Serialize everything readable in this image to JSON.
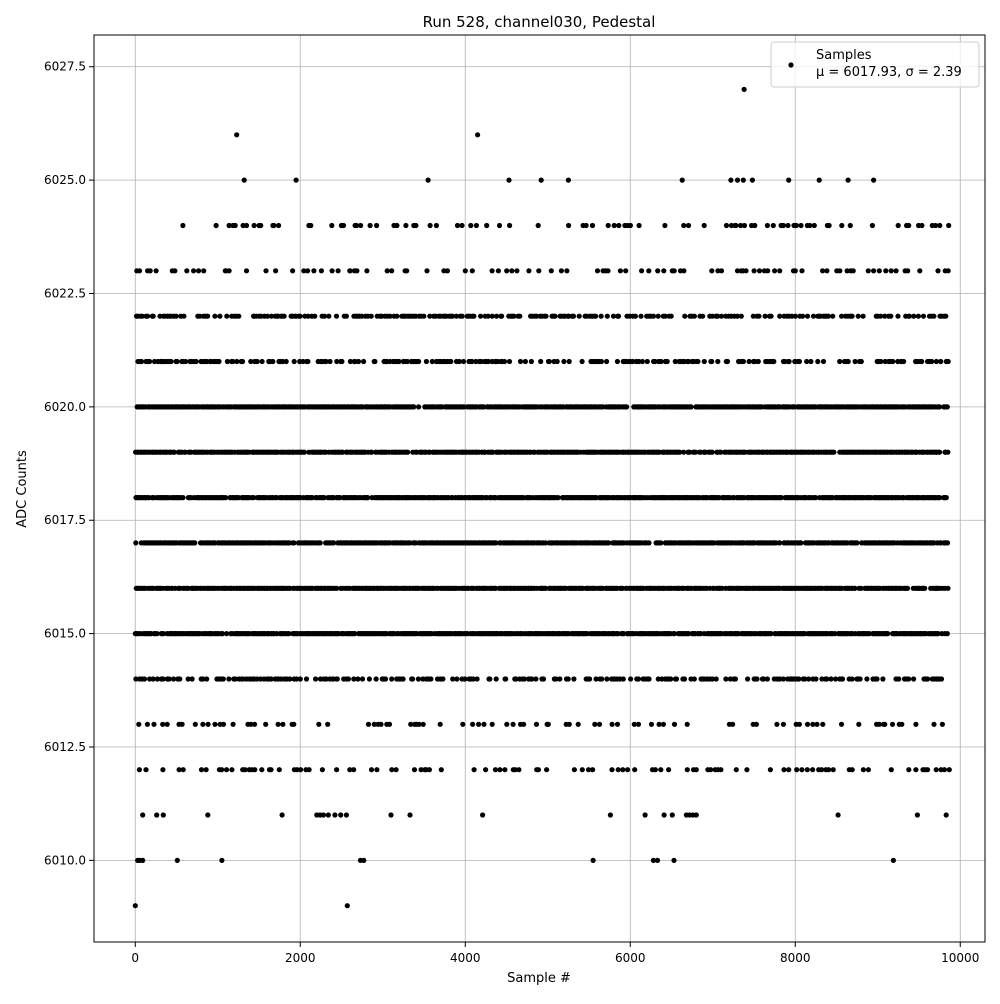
{
  "chart_data": {
    "type": "scatter",
    "title": "Run 528, channel030, Pedestal",
    "xlabel": "Sample #",
    "ylabel": "ADC Counts",
    "xlim": [
      -500,
      10300
    ],
    "ylim": [
      6008.2,
      6028.2
    ],
    "xticks": [
      0,
      2000,
      4000,
      6000,
      8000,
      10000
    ],
    "xtick_labels": [
      "0",
      "2000",
      "4000",
      "6000",
      "8000",
      "10000"
    ],
    "yticks": [
      6010.0,
      6012.5,
      6015.0,
      6017.5,
      6020.0,
      6022.5,
      6025.0,
      6027.5
    ],
    "ytick_labels": [
      "6010.0",
      "6012.5",
      "6015.0",
      "6017.5",
      "6020.0",
      "6022.5",
      "6025.0",
      "6027.5"
    ],
    "grid": true,
    "legend": {
      "placement": "top-right",
      "series_label": "Samples",
      "stats_label": "μ = 6017.93, σ = 2.39"
    },
    "marker_color": "#000000",
    "series": [
      {
        "name": "Samples",
        "n_samples": 9850,
        "dense_levels": [
          6015,
          6016,
          6017,
          6018,
          6019,
          6020
        ],
        "medium_levels": [
          6014,
          6021,
          6022
        ],
        "sparse_levels": [
          6012,
          6013,
          6023,
          6024
        ],
        "rare_points": [
          {
            "x": 0,
            "y": 6009
          },
          {
            "x": 2570,
            "y": 6009
          },
          {
            "x": 30,
            "y": 6010
          },
          {
            "x": 55,
            "y": 6010
          },
          {
            "x": 90,
            "y": 6010
          },
          {
            "x": 510,
            "y": 6010
          },
          {
            "x": 1050,
            "y": 6010
          },
          {
            "x": 2730,
            "y": 6010
          },
          {
            "x": 2770,
            "y": 6010
          },
          {
            "x": 5550,
            "y": 6010
          },
          {
            "x": 6280,
            "y": 6010
          },
          {
            "x": 6330,
            "y": 6010
          },
          {
            "x": 6530,
            "y": 6010
          },
          {
            "x": 9190,
            "y": 6010
          },
          {
            "x": 90,
            "y": 6011
          },
          {
            "x": 260,
            "y": 6011
          },
          {
            "x": 340,
            "y": 6011
          },
          {
            "x": 880,
            "y": 6011
          },
          {
            "x": 1780,
            "y": 6011
          },
          {
            "x": 2200,
            "y": 6011
          },
          {
            "x": 2240,
            "y": 6011
          },
          {
            "x": 2280,
            "y": 6011
          },
          {
            "x": 2340,
            "y": 6011
          },
          {
            "x": 2420,
            "y": 6011
          },
          {
            "x": 2490,
            "y": 6011
          },
          {
            "x": 2560,
            "y": 6011
          },
          {
            "x": 3100,
            "y": 6011
          },
          {
            "x": 3330,
            "y": 6011
          },
          {
            "x": 4210,
            "y": 6011
          },
          {
            "x": 5760,
            "y": 6011
          },
          {
            "x": 6180,
            "y": 6011
          },
          {
            "x": 6410,
            "y": 6011
          },
          {
            "x": 6510,
            "y": 6011
          },
          {
            "x": 6680,
            "y": 6011
          },
          {
            "x": 6720,
            "y": 6011
          },
          {
            "x": 6760,
            "y": 6011
          },
          {
            "x": 6800,
            "y": 6011
          },
          {
            "x": 8520,
            "y": 6011
          },
          {
            "x": 9480,
            "y": 6011
          },
          {
            "x": 9830,
            "y": 6011
          },
          {
            "x": 150,
            "y": 6023
          },
          {
            "x": 1100,
            "y": 6023
          },
          {
            "x": 2600,
            "y": 6023
          },
          {
            "x": 4000,
            "y": 6023
          },
          {
            "x": 6650,
            "y": 6023
          },
          {
            "x": 7300,
            "y": 6023
          },
          {
            "x": 8000,
            "y": 6023
          },
          {
            "x": 8950,
            "y": 6023
          },
          {
            "x": 1320,
            "y": 6025
          },
          {
            "x": 1950,
            "y": 6025
          },
          {
            "x": 3550,
            "y": 6025
          },
          {
            "x": 4530,
            "y": 6025
          },
          {
            "x": 4920,
            "y": 6025
          },
          {
            "x": 5250,
            "y": 6025
          },
          {
            "x": 6630,
            "y": 6025
          },
          {
            "x": 7220,
            "y": 6025
          },
          {
            "x": 7300,
            "y": 6025
          },
          {
            "x": 7370,
            "y": 6025
          },
          {
            "x": 7480,
            "y": 6025
          },
          {
            "x": 7920,
            "y": 6025
          },
          {
            "x": 8290,
            "y": 6025
          },
          {
            "x": 8640,
            "y": 6025
          },
          {
            "x": 8950,
            "y": 6025
          },
          {
            "x": 1230,
            "y": 6026
          },
          {
            "x": 4150,
            "y": 6026
          },
          {
            "x": 7380,
            "y": 6027
          }
        ]
      }
    ]
  }
}
